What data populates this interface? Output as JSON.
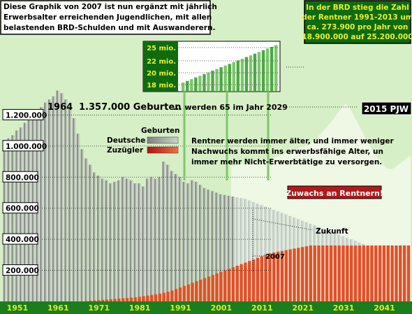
{
  "chart_data": {
    "type": "bar",
    "x_start": 1951,
    "x_end": 2050,
    "ylim": [
      0,
      1400000
    ],
    "ytick_labels": [
      "200.000",
      "400.000",
      "600.000",
      "800.000",
      "1.000.000",
      "1.200.000"
    ],
    "yticks": [
      200000,
      400000,
      600000,
      800000,
      1000000,
      1200000
    ],
    "xtick_labels": [
      "1951",
      "1961",
      "1971",
      "1981",
      "1991",
      "2001",
      "2011",
      "2021",
      "2031",
      "2041"
    ],
    "series": [
      {
        "name": "Deutsche",
        "values": [
          1040000,
          1050000,
          1070000,
          1100000,
          1120000,
          1150000,
          1180000,
          1210000,
          1230000,
          1250000,
          1280000,
          1300000,
          1320000,
          1357000,
          1340000,
          1300000,
          1250000,
          1180000,
          1080000,
          980000,
          920000,
          880000,
          830000,
          810000,
          790000,
          780000,
          760000,
          770000,
          780000,
          800000,
          790000,
          780000,
          760000,
          760000,
          740000,
          790000,
          800000,
          790000,
          800000,
          900000,
          880000,
          840000,
          820000,
          800000,
          770000,
          760000,
          780000,
          770000,
          750000,
          730000,
          720000,
          710000,
          700000,
          690000,
          685000,
          680000,
          675000,
          670000,
          665000,
          660000,
          650000,
          640000,
          630000,
          620000,
          610000,
          600000,
          590000,
          580000,
          570000,
          560000,
          550000,
          540000,
          530000,
          520000,
          510000,
          500000,
          490000,
          480000,
          470000,
          460000,
          450000,
          440000,
          430000,
          420000,
          410000,
          400000,
          390000,
          380000,
          370000,
          360000,
          350000,
          340000,
          330000,
          320000,
          310000,
          300000,
          295000,
          290000,
          285000,
          280000
        ]
      },
      {
        "name": "Zuzügler",
        "values": [
          0,
          0,
          0,
          0,
          0,
          0,
          0,
          0,
          0,
          0,
          0,
          0,
          0,
          0,
          0,
          0,
          0,
          0,
          0,
          0,
          2000,
          4000,
          6000,
          8000,
          10000,
          12000,
          14000,
          16000,
          18000,
          20000,
          22000,
          24000,
          26000,
          30000,
          34000,
          38000,
          42000,
          46000,
          50000,
          56000,
          62000,
          70000,
          80000,
          90000,
          100000,
          110000,
          120000,
          130000,
          140000,
          150000,
          160000,
          170000,
          180000,
          190000,
          200000,
          210000,
          220000,
          230000,
          240000,
          250000,
          260000,
          270000,
          280000,
          290000,
          300000,
          310000,
          315000,
          320000,
          325000,
          330000,
          335000,
          340000,
          345000,
          350000,
          355000,
          360000,
          360000,
          360000,
          360000,
          360000,
          360000,
          360000,
          360000,
          360000,
          360000,
          360000,
          360000,
          360000,
          360000,
          360000,
          360000,
          360000,
          360000,
          360000,
          360000,
          360000,
          360000,
          360000,
          360000,
          360000
        ]
      }
    ],
    "future_from_year": 2007,
    "future_area_top": [
      870000,
      875000,
      880000,
      885000,
      890000,
      895000,
      900000,
      905000,
      910000,
      915000,
      920000,
      930000,
      940000,
      950000,
      960000,
      970000,
      980000,
      990000,
      1000000,
      1010000,
      1030000,
      1050000,
      1080000,
      1110000,
      1140000,
      1170000,
      1210000,
      1240000,
      1270000,
      1250000,
      1200000,
      1150000,
      1100000,
      1050000,
      1000000,
      960000,
      920000,
      890000,
      860000,
      850000,
      860000,
      880000,
      900000,
      920000,
      940000
    ],
    "inset": {
      "title": "Rentner 1991-2013",
      "ytick_labels": [
        "25 mio.",
        "22 mio.",
        "20 mio.",
        "18 mio."
      ],
      "years": 23,
      "start_value": 18.9,
      "end_value": 25.2
    }
  },
  "text": {
    "intro": [
      "Diese Graphik von 2007 ist nun ergänzt mit jährlich",
      "Erwerbsalter erreichenden Jugendlichen, mit allen",
      "belastenden BRD-Schulden und mit Auswanderern."
    ],
    "rentner_box": [
      "In der BRD stieg die Zahl",
      "der Rentner 1991-2013 um",
      "ca. 273.900 pro Jahr von",
      "18.900.000 auf 25.200.000"
    ],
    "headline_year": "1964",
    "headline_rest": "1.357.000 Geburten",
    "headline_tail": "... werden 65 im Jahr 2029",
    "badge_2015": "2015 PJW",
    "legend_geburten": "Geburten",
    "legend_deutsche": "Deutsche",
    "legend_zuzuegler": "Zuzügler",
    "rentner_note": [
      "Rentner werden immer älter, und immer weniger",
      "Nachwuchs kommt ins erwerbsfähige Alter, un",
      "immer mehr Nicht-Erwerbtätige zu versorgen."
    ],
    "zuwachs": "Zuwachs an Rentnern!",
    "zukunft": "Zukunft",
    "y2007": "2007"
  },
  "colors": {
    "bg_green": "#bde6a8",
    "bar_grey": "#8a8e8a",
    "bar_light": "#e8f3df",
    "bar_red": "#e2502a",
    "axis_green": "#1c7d1c",
    "axis_text": "#d8e81a",
    "box_dark": "#0f6b10",
    "zuwachs_bg": "#b01a1a"
  }
}
